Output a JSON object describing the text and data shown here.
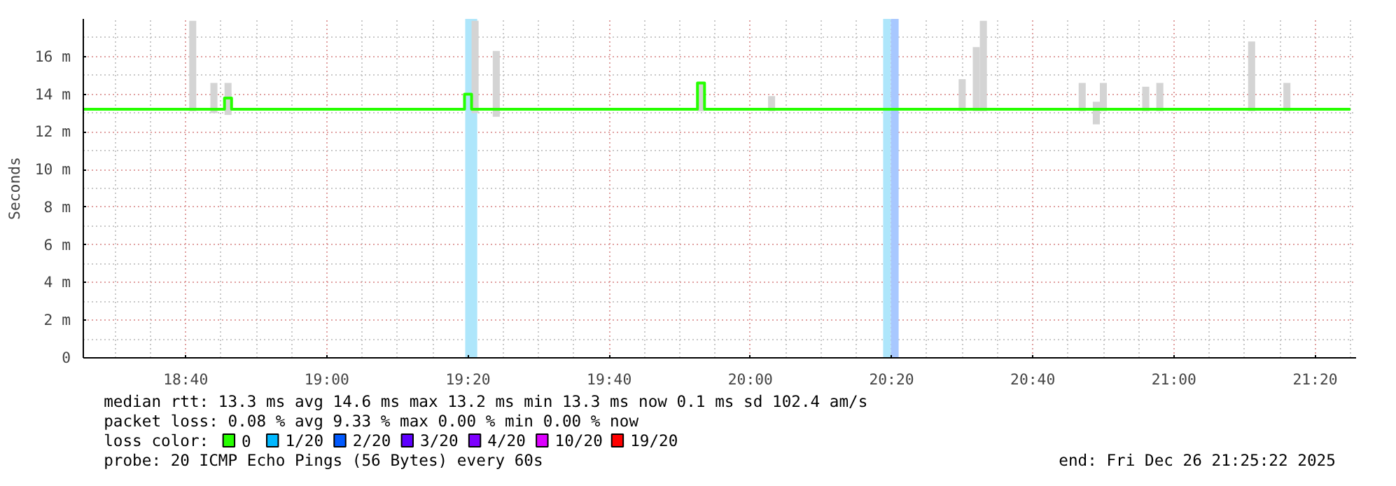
{
  "chart_data": {
    "type": "line",
    "ylabel": "Seconds",
    "xlim": [
      "2025-12-26T18:25:30",
      "2025-12-26T21:25:48"
    ],
    "xticks": [
      {
        "value": "2025-12-26T18:40",
        "label": "18:40"
      },
      {
        "value": "2025-12-26T19:00",
        "label": "19:00"
      },
      {
        "value": "2025-12-26T19:20",
        "label": "19:20"
      },
      {
        "value": "2025-12-26T19:40",
        "label": "19:40"
      },
      {
        "value": "2025-12-26T20:00",
        "label": "20:00"
      },
      {
        "value": "2025-12-26T20:20",
        "label": "20:20"
      },
      {
        "value": "2025-12-26T20:40",
        "label": "20:40"
      },
      {
        "value": "2025-12-26T21:00",
        "label": "21:00"
      },
      {
        "value": "2025-12-26T21:20",
        "label": "21:20"
      }
    ],
    "ylim": [
      0,
      18
    ],
    "yticks": [
      0,
      {
        "value": 2,
        "label": "2 m"
      },
      {
        "value": 4,
        "label": "4 m"
      },
      {
        "value": 6,
        "label": "6 m"
      },
      {
        "value": 8,
        "label": "8 m"
      },
      {
        "value": 10,
        "label": "10 m"
      },
      {
        "value": 12,
        "label": "12 m"
      },
      {
        "value": 14,
        "label": "14 m"
      },
      {
        "value": 16,
        "label": "16 m"
      }
    ],
    "grid": true,
    "legend": "bottom",
    "series": [
      {
        "type": "bar",
        "color": "#d4d4d4",
        "x": [
          "2025-12-26T18:41",
          "2025-12-26T18:44",
          "2025-12-26T18:46",
          "2025-12-26T19:21",
          "2025-12-26T19:24",
          "2025-12-26T19:53",
          "2025-12-26T20:03",
          "2025-12-26T20:30",
          "2025-12-26T20:32",
          "2025-12-26T20:33",
          "2025-12-26T20:47",
          "2025-12-26T20:49",
          "2025-12-26T20:50",
          "2025-12-26T20:56",
          "2025-12-26T20:58",
          "2025-12-26T21:11",
          "2025-12-26T21:16"
        ],
        "base": [
          13.1,
          13.0,
          12.9,
          13.0,
          12.8,
          13.1,
          13.1,
          13.1,
          13.1,
          13.1,
          13.1,
          12.4,
          13.1,
          13.1,
          13.1,
          13.1,
          13.1
        ],
        "values": [
          4.8,
          1.6,
          1.7,
          4.9,
          3.5,
          1.5,
          0.8,
          1.7,
          3.4,
          4.8,
          1.5,
          1.2,
          1.5,
          1.3,
          1.5,
          3.7,
          1.5
        ]
      },
      {
        "name": "0",
        "color": "#26ff00",
        "x": [
          "2025-12-26T18:25:30",
          "2025-12-26T18:45",
          "2025-12-26T18:46",
          "2025-12-26T18:47",
          "2025-12-26T19:19",
          "2025-12-26T19:20",
          "2025-12-26T19:21",
          "2025-12-26T19:52",
          "2025-12-26T19:53",
          "2025-12-26T19:54",
          "2025-12-26T21:25"
        ],
        "values": [
          13.2,
          13.2,
          13.8,
          13.2,
          13.2,
          14.0,
          13.2,
          13.2,
          14.6,
          13.2,
          13.2
        ]
      },
      {
        "name": "1/20",
        "color": "#00b8ff"
      },
      {
        "name": "2/20",
        "color": "#0059ff"
      },
      {
        "name": "3/20",
        "color": "#5e00ff"
      },
      {
        "name": "4/20",
        "color": "#7e00ff"
      },
      {
        "name": "10/20",
        "color": "#dd00ff"
      },
      {
        "name": "19/20",
        "color": "#ff0000"
      }
    ],
    "legend_title": "loss color:",
    "bands": [
      {
        "axis": "x",
        "from": "2025-12-26T19:19:36",
        "to": "2025-12-26T19:21:18",
        "color": "#aee6fb"
      },
      {
        "axis": "x",
        "from": "2025-12-26T20:18:48",
        "to": "2025-12-26T20:19:54",
        "color": "#aee6fb"
      },
      {
        "axis": "x",
        "from": "2025-12-26T20:19:54",
        "to": "2025-12-26T20:21:00",
        "color": "#a8c8ff"
      }
    ],
    "annotations": [
      "median rtt:  13.3 ms avg  14.6 ms max  13.2 ms min  13.3 ms now  0.1 ms sd  102.4   am/s",
      "packet loss: 0.08 % avg  9.33 % max  0.00 % min  0.00 % now",
      "probe:       20 ICMP Echo Pings (56 Bytes) every 60s",
      "end: Fri Dec 26 21:25:22 2025"
    ]
  }
}
